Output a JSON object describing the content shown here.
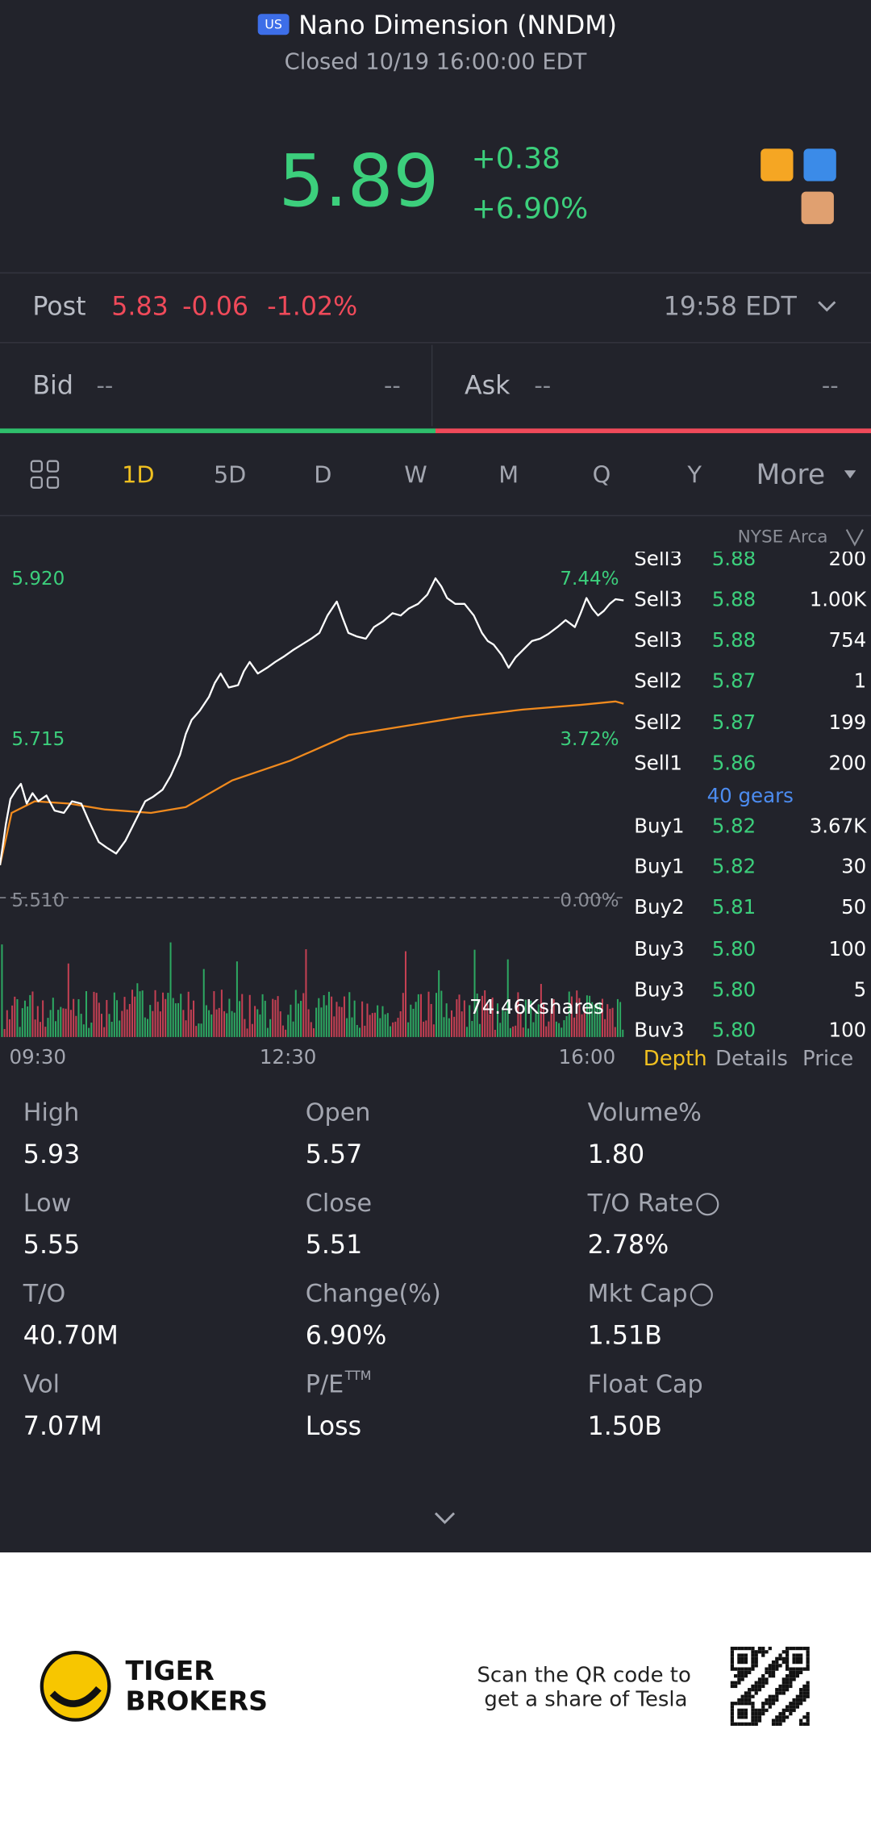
{
  "header": {
    "badge": "US",
    "title": "Nano Dimension (NNDM)",
    "status": "Closed 10/19 16:00:00 EDT"
  },
  "quote": {
    "price": "5.89",
    "change": "+0.38",
    "change_pct": "+6.90%"
  },
  "post": {
    "label": "Post",
    "price": "5.83",
    "change": "-0.06",
    "change_pct": "-1.02%",
    "time": "19:58 EDT"
  },
  "bid_ask": {
    "bid_label": "Bid",
    "bid_price": "--",
    "bid_size": "--",
    "ask_label": "Ask",
    "ask_price": "--",
    "ask_size": "--"
  },
  "tabs": [
    "1D",
    "5D",
    "D",
    "W",
    "M",
    "Q",
    "Y",
    "More"
  ],
  "chart": {
    "exchange": "NYSE Arca",
    "price_labels": [
      "5.920",
      "5.715",
      "5.510"
    ],
    "pct_labels": [
      "7.44%",
      "3.72%",
      "0.00%"
    ],
    "volume_label": "74.46Kshares",
    "time_labels": [
      "09:30",
      "12:30",
      "16:00"
    ]
  },
  "order_book": {
    "rows": [
      [
        "Sell3",
        "5.88",
        "200"
      ],
      [
        "Sell3",
        "5.88",
        "1.00K"
      ],
      [
        "Sell3",
        "5.88",
        "754"
      ],
      [
        "Sell2",
        "5.87",
        "1"
      ],
      [
        "Sell2",
        "5.87",
        "199"
      ],
      [
        "Sell1",
        "5.86",
        "200"
      ],
      [
        "Buy1",
        "5.82",
        "3.67K"
      ],
      [
        "Buy1",
        "5.82",
        "30"
      ],
      [
        "Buy2",
        "5.81",
        "50"
      ],
      [
        "Buy3",
        "5.80",
        "100"
      ],
      [
        "Buy3",
        "5.80",
        "5"
      ],
      [
        "Buy3",
        "5.80",
        "100"
      ]
    ],
    "gears": "40 gears",
    "tabs": [
      "Depth",
      "Details",
      "Price"
    ]
  },
  "stats": [
    {
      "label": "High",
      "value": "5.93"
    },
    {
      "label": "Open",
      "value": "5.57"
    },
    {
      "label": "Volume%",
      "value": "1.80"
    },
    {
      "label": "Low",
      "value": "5.55"
    },
    {
      "label": "Close",
      "value": "5.51"
    },
    {
      "label": "T/O Rate",
      "value": "2.78%"
    },
    {
      "label": "T/O",
      "value": "40.70M"
    },
    {
      "label": "Change(%)",
      "value": "6.90%"
    },
    {
      "label": "Mkt Cap",
      "value": "1.51B"
    },
    {
      "label": "Vol",
      "value": "7.07M"
    },
    {
      "label": "P/E",
      "sup": "TTM",
      "value": "Loss"
    },
    {
      "label": "Float Cap",
      "value": "1.50B"
    }
  ],
  "footer": {
    "brand": [
      "TIGER",
      "BROKERS"
    ],
    "promo": [
      "Scan the QR code to",
      "get a share of Tesla"
    ]
  }
}
